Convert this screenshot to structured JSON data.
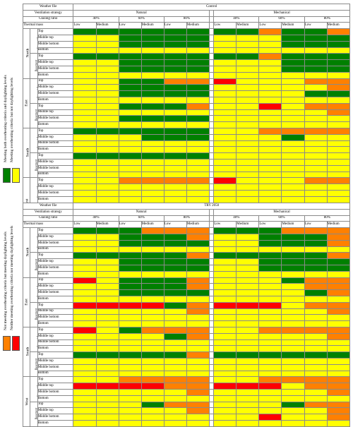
{
  "legend_top": {
    "line1": "Meeting both overheating criteria and daylighting levels",
    "line2": "Meeting overheating criteria but not daylighting levels",
    "colors": [
      "#008000",
      "#ffff00"
    ]
  },
  "legend_bottom": {
    "line1": "Not meeting overheating criteria but meeting daylighting levels",
    "line2": "Neither meeting overheating criteria nor meeting daylighting levels",
    "colors": [
      "#ff8000",
      "#ff0000"
    ]
  },
  "labels": {
    "weather": "Weather file",
    "vent": "Ventilation strategy",
    "glazing": "Glazing ratio",
    "thermal": "Thermal mass",
    "natural": "Natural",
    "mechanical": "Mechanical",
    "g40": "40%",
    "g60": "60%",
    "g80": "80%",
    "low": "Low",
    "medium": "Medium",
    "floors": [
      "Top",
      "Middle top",
      "Middle bottom",
      "Bottom"
    ],
    "orients": [
      "North",
      "East",
      "South",
      "West"
    ],
    "ground": "Ground floor",
    "basement": "Basement"
  },
  "panels": [
    {
      "weather": "Control",
      "rows": [
        "GGGGGG|GGOGGO",
        "YYGGGG|YYYGGG",
        "YYGGGG|YYYGGG",
        "YYYYYY|YYYYYY",
        "GGGGGG|GGOGGG",
        "YYGGGG|YYYGGG",
        "YYGGGG|YYYGGG",
        "YYYYYY|YYYYYY",
        "YYGGOO|RYYYOO",
        "YYGGGG|YYYYYO",
        "YYGGGG|YYYYGG",
        "YYYYYY|YYYYYY",
        "YYGGGO|YYRYOO",
        "YYYYYY|YYYYYO",
        "YYGGGG|YYYYYY",
        "YYYYYY|YYYYYY",
        "GGGGGG|YYOOOO",
        "YYYGGG|YYYGYY",
        "YYYYYY|YYYYYY",
        "YYYYYY|YYYYYY",
        "GGGGGG|YYYYYY",
        "YYYYYY|YYYYYY",
        "YYYYYY|YYYYYY",
        "YYYYYY|YYYYYY",
        "YYOOOO|RYYYOO",
        "YYYYYY|YYYYYY",
        "YYYYYY|YYYYYY",
        "YYYYYY|YYYYYY",
        "YYYYYY|YYRYOO",
        "YYYYGG|YYYYGG",
        "YYYYYY|YYYYYY",
        "YYYYYY|YYYYYY"
      ]
    },
    {
      "weather": "TRY 2050",
      "rows": [
        "GGGOOO|GGGOOO",
        "YYGGGO|YYGGGO",
        "YYGGGG|YYGGGO",
        "YYYYYY|YYYYYY",
        "GGGGGO|GGGGGO",
        "YYGGGG|YYGGGG",
        "YYGGGG|YYGGGG",
        "YYYYYY|YYYYYY",
        "RYGGGO|YYYGOO",
        "YYGGGO|YYYYOO",
        "YYGGGG|YYYYGO",
        "YYYYYY|YYYYYY",
        "RRRRGO|RRRYOO",
        "YYYYYO|YYYYYO",
        "YYYYYY|YYYYYY",
        "YYYYYY|YYYYYY",
        "RYGOOO|YYOOOO",
        "YYYYGO|YYYYYO",
        "YYYYYY|YYYYYY",
        "YYYYYY|YYYYYY",
        "GGGGGO|GGGGGG",
        "YYYYYY|YYYYYY",
        "YYYYYY|YYYYYY",
        "YYYYYY|YYYYYY",
        "YYOOOO|YYOOOO",
        "RRRROO|RRRYOO",
        "YYYYYO|YYYYYO",
        "YYYYYY|YYYYYY",
        "YYYGOO|YYYGOO",
        "YYYYYO|YYYYYO",
        "YYYYYY|YYRYYO",
        "YYYYYY|YYYYYY"
      ]
    }
  ]
}
